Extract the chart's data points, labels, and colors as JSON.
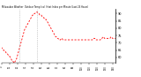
{
  "title": "Milwaukee Weather  Outdoor Temp (vs)  Heat Index per Minute (Last 24 Hours)",
  "bg_color": "#ffffff",
  "line_color": "#ff0000",
  "vline_color": "#999999",
  "ylim": [
    56,
    93
  ],
  "yticks": [
    60,
    65,
    70,
    75,
    80,
    85,
    90
  ],
  "vline_x": [
    22,
    45
  ],
  "y_values": [
    67,
    66,
    65,
    65,
    64,
    64,
    63,
    63,
    62,
    61,
    61,
    60,
    59,
    58,
    57,
    57,
    56,
    57,
    58,
    59,
    61,
    63,
    65,
    67,
    69,
    71,
    73,
    75,
    77,
    79,
    80,
    81,
    82,
    83,
    84,
    85,
    86,
    87,
    88,
    89,
    89,
    90,
    90,
    91,
    91,
    91,
    90,
    90,
    89,
    89,
    89,
    88,
    88,
    87,
    87,
    86,
    86,
    85,
    84,
    83,
    82,
    81,
    80,
    79,
    78,
    77,
    76,
    75,
    74,
    74,
    73,
    73,
    72,
    72,
    72,
    73,
    73,
    72,
    72,
    72,
    72,
    72,
    72,
    72,
    72,
    72,
    72,
    72,
    72,
    72,
    72,
    72,
    72,
    72,
    72,
    72,
    72,
    72,
    72,
    72,
    72,
    72,
    72,
    72,
    72,
    72,
    72,
    72,
    72,
    72,
    72,
    72,
    72,
    72,
    72,
    73,
    73,
    73,
    72,
    72,
    72,
    72,
    72,
    72,
    72,
    73,
    73,
    74,
    74,
    73,
    73,
    73,
    73,
    73,
    73,
    73,
    73,
    74,
    74,
    73,
    73,
    73,
    73,
    73
  ]
}
